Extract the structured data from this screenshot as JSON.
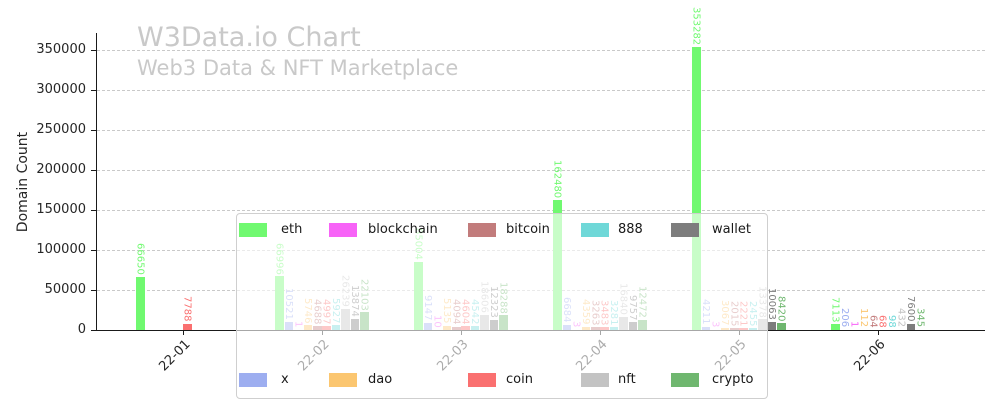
{
  "header": {
    "title": "W3Data.io Chart",
    "subtitle": "Web3 Data & NFT Marketplace"
  },
  "chart_data": {
    "type": "bar",
    "title": "W3Data.io Chart",
    "subtitle": "Web3 Data & NFT Marketplace",
    "xlabel": "",
    "ylabel": "Domain Count",
    "categories": [
      "22-01",
      "22-02",
      "22-03",
      "22-04",
      "22-05",
      "22-06"
    ],
    "series": [
      {
        "name": "eth",
        "color": "#70f970",
        "values": [
          66650,
          66996,
          85004,
          162480,
          353282,
          7113
        ]
      },
      {
        "name": "x",
        "color": "#9daef0",
        "values": [
          0,
          10521,
          9147,
          6684,
          4211,
          206
        ]
      },
      {
        "name": "blockchain",
        "color": "#f763f7",
        "values": [
          0,
          1,
          10,
          3,
          3,
          1
        ]
      },
      {
        "name": "dao",
        "color": "#fbc670",
        "values": [
          0,
          5746,
          5135,
          4359,
          3067,
          112
        ]
      },
      {
        "name": "bitcoin",
        "color": "#c27c7c",
        "values": [
          0,
          4688,
          4094,
          3263,
          2015,
          64
        ]
      },
      {
        "name": "coin",
        "color": "#fa7070",
        "values": [
          7788,
          4997,
          4604,
          3483,
          2221,
          68
        ]
      },
      {
        "name": "888",
        "color": "#6fd8d8",
        "values": [
          0,
          5927,
          4542,
          3281,
          2455,
          98
        ]
      },
      {
        "name": "nft",
        "color": "#c3c3c3",
        "values": [
          0,
          26239,
          18606,
          16840,
          13378,
          432
        ]
      },
      {
        "name": "wallet",
        "color": "#7d7d7d",
        "values": [
          0,
          13874,
          12323,
          9757,
          10063,
          7600
        ]
      },
      {
        "name": "crypto",
        "color": "#6fb76f",
        "values": [
          0,
          22103,
          18288,
          12472,
          8420,
          345
        ]
      }
    ],
    "ylim": [
      0,
      380000
    ],
    "yticks": [
      0,
      50000,
      100000,
      150000,
      200000,
      250000,
      300000,
      350000
    ],
    "grid": true,
    "value_labels": true,
    "legend_layout": {
      "position": "center",
      "columns": 5,
      "rows": [
        [
          "eth",
          "blockchain",
          "bitcoin",
          "888",
          "wallet"
        ],
        [
          "x",
          "dao",
          "coin",
          "nft",
          "crypto"
        ]
      ]
    }
  }
}
